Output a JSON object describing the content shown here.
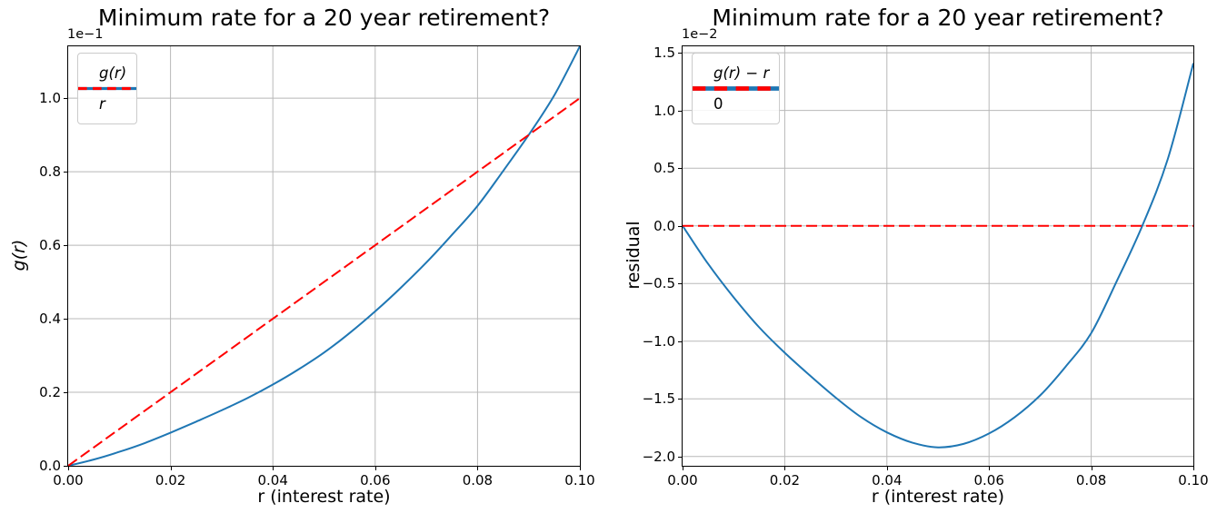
{
  "chart_data": [
    {
      "type": "line",
      "title": "Minimum rate for a 20 year retirement?",
      "xlabel": "r (interest rate)",
      "ylabel": "g(r)",
      "ylabel_italic": true,
      "offset_text": "1e−1",
      "xlim": [
        0,
        0.1
      ],
      "ylim": [
        0,
        0.1141
      ],
      "grid": true,
      "grid_color": "#b8b8b8",
      "legend_position": "upper-left",
      "xticks": {
        "values": [
          0,
          0.02,
          0.04,
          0.06,
          0.08,
          0.1
        ],
        "labels": [
          "0.00",
          "0.02",
          "0.04",
          "0.06",
          "0.08",
          "0.10"
        ]
      },
      "yticks": {
        "values": [
          0,
          0.02,
          0.04,
          0.06,
          0.08,
          0.1
        ],
        "labels": [
          "0.0",
          "0.2",
          "0.4",
          "0.6",
          "0.8",
          "1.0"
        ]
      },
      "series": [
        {
          "name": "g(r)",
          "italic": true,
          "color": "#1f77b4",
          "dash": "solid",
          "width": 2,
          "x": [
            0,
            0.005,
            0.01,
            0.015,
            0.02,
            0.025,
            0.03,
            0.035,
            0.04,
            0.045,
            0.05,
            0.055,
            0.06,
            0.065,
            0.07,
            0.075,
            0.08,
            0.085,
            0.09,
            0.095,
            0.1
          ],
          "y": [
            0,
            0.0017,
            0.0038,
            0.0062,
            0.009,
            0.012,
            0.0151,
            0.0184,
            0.0221,
            0.0262,
            0.0308,
            0.0361,
            0.042,
            0.0484,
            0.0553,
            0.0628,
            0.0707,
            0.0802,
            0.09,
            0.1008,
            0.1141
          ]
        },
        {
          "name": "r",
          "italic": true,
          "color": "#ff0000",
          "dash": "dashed",
          "width": 2,
          "x": [
            0,
            0.1
          ],
          "y": [
            0,
            0.1
          ]
        }
      ]
    },
    {
      "type": "line",
      "title": "Minimum rate for a 20 year retirement?",
      "xlabel": "r (interest rate)",
      "ylabel": "residual",
      "ylabel_italic": false,
      "offset_text": "1e−2",
      "xlim": [
        0,
        0.1
      ],
      "ylim": [
        -0.0208,
        0.01556
      ],
      "grid": true,
      "grid_color": "#b8b8b8",
      "legend_position": "upper-left",
      "xticks": {
        "values": [
          0,
          0.02,
          0.04,
          0.06,
          0.08,
          0.1
        ],
        "labels": [
          "0.00",
          "0.02",
          "0.04",
          "0.06",
          "0.08",
          "0.10"
        ]
      },
      "yticks": {
        "values": [
          -0.02,
          -0.015,
          -0.01,
          -0.005,
          0,
          0.005,
          0.01,
          0.015
        ],
        "labels": [
          "−2.0",
          "−1.5",
          "−1.0",
          "−0.5",
          "0.0",
          "0.5",
          "1.0",
          "1.5"
        ]
      },
      "series": [
        {
          "name": "g(r) − r",
          "italic": true,
          "color": "#1f77b4",
          "dash": "solid",
          "width": 2,
          "x": [
            0,
            0.005,
            0.01,
            0.015,
            0.02,
            0.025,
            0.03,
            0.035,
            0.04,
            0.045,
            0.05,
            0.055,
            0.06,
            0.065,
            0.07,
            0.075,
            0.08,
            0.085,
            0.09,
            0.095,
            0.1
          ],
          "y": [
            0,
            -0.0033,
            -0.0062,
            -0.0088,
            -0.011,
            -0.013,
            -0.0149,
            -0.0166,
            -0.0179,
            -0.0188,
            -0.0192,
            -0.0189,
            -0.018,
            -0.0166,
            -0.0147,
            -0.0122,
            -0.0093,
            -0.0048,
            0,
            0.0058,
            0.0141
          ]
        },
        {
          "name": "0",
          "italic": false,
          "color": "#ff0000",
          "dash": "dashed",
          "width": 2,
          "x": [
            0,
            0.1
          ],
          "y": [
            0,
            0
          ]
        }
      ]
    }
  ]
}
